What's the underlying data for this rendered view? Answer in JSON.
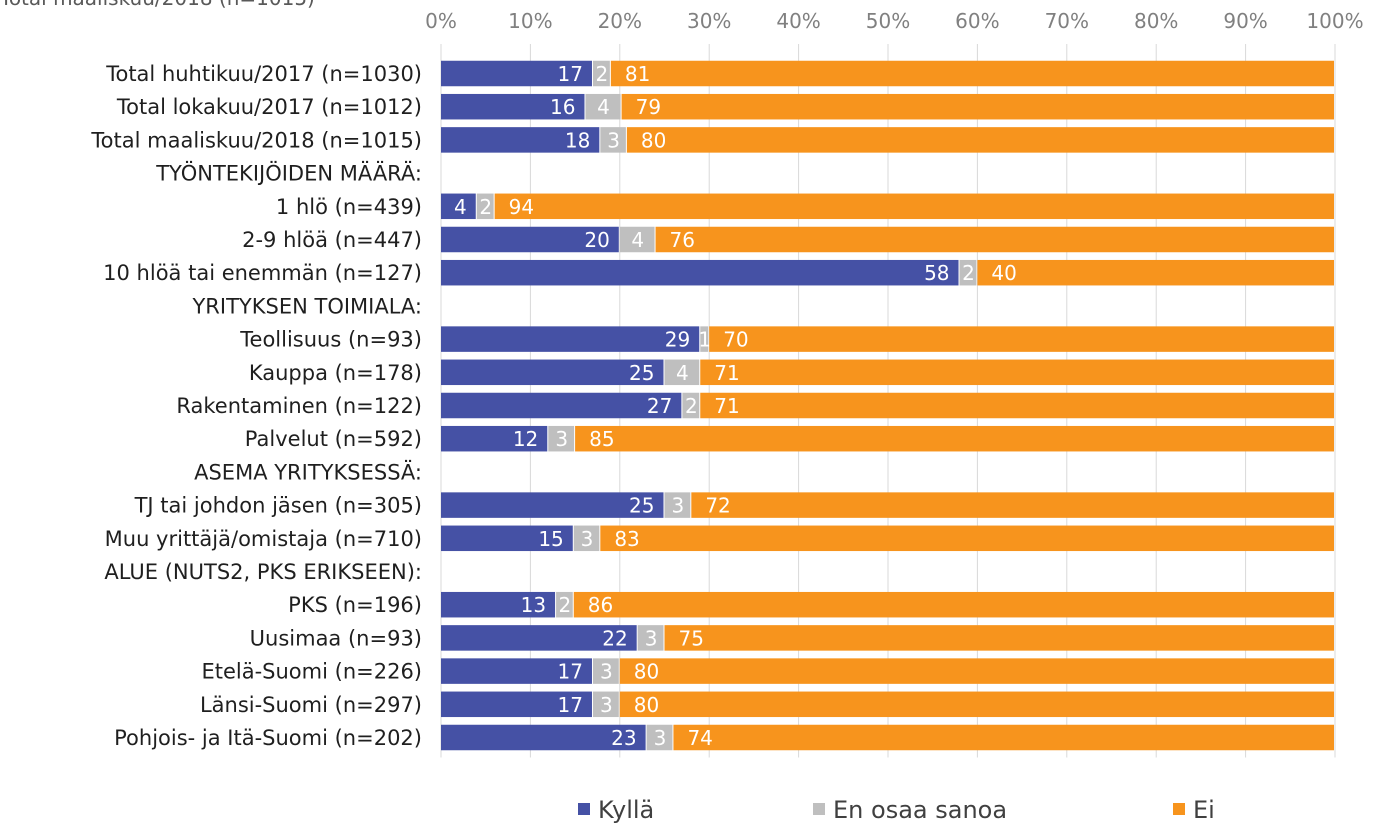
{
  "top_note": "Total maaliskuu/2018 (n=1015)",
  "chart_data": {
    "type": "bar",
    "orientation": "horizontal",
    "stacked": "percent",
    "title": "",
    "xlabel": "",
    "ylabel": "",
    "xlim": [
      0,
      100
    ],
    "x_ticks": [
      "0%",
      "10%",
      "20%",
      "30%",
      "40%",
      "50%",
      "60%",
      "70%",
      "80%",
      "90%",
      "100%"
    ],
    "grid": "vertical",
    "legend_position": "bottom",
    "colors": [
      "#4551A5",
      "#BFBFBF",
      "#F7941D"
    ],
    "categories": [
      "Total huhtikuu/2017 (n=1030)",
      "Total lokakuu/2017 (n=1012)",
      "Total maaliskuu/2018 (n=1015)",
      "TYÖNTEKIJÖIDEN MÄÄRÄ:",
      "1 hlö (n=439)",
      "2-9 hlöä (n=447)",
      "10 hlöä tai enemmän (n=127)",
      "YRITYKSEN TOIMIALA:",
      "Teollisuus (n=93)",
      "Kauppa  (n=178)",
      "Rakentaminen (n=122)",
      "Palvelut  (n=592)",
      "ASEMA YRITYKSESSÄ:",
      "TJ tai johdon jäsen (n=305)",
      "Muu yrittäjä/omistaja (n=710)",
      "ALUE (NUTS2, PKS ERIKSEEN):",
      "PKS (n=196)",
      "Uusimaa (n=93)",
      "Etelä-Suomi (n=226)",
      "Länsi-Suomi (n=297)",
      "Pohjois- ja Itä-Suomi (n=202)"
    ],
    "series": [
      {
        "name": "Kyllä",
        "values": [
          17,
          16,
          18,
          null,
          4,
          20,
          58,
          null,
          29,
          25,
          27,
          12,
          null,
          25,
          15,
          null,
          13,
          22,
          17,
          17,
          23
        ]
      },
      {
        "name": "En osaa sanoa",
        "values": [
          2,
          4,
          3,
          null,
          2,
          4,
          2,
          null,
          1,
          4,
          2,
          3,
          null,
          3,
          3,
          null,
          2,
          3,
          3,
          3,
          3
        ]
      },
      {
        "name": "Ei",
        "values": [
          81,
          79,
          80,
          null,
          94,
          76,
          40,
          null,
          70,
          71,
          71,
          85,
          null,
          72,
          83,
          null,
          86,
          75,
          80,
          80,
          74
        ]
      }
    ]
  }
}
